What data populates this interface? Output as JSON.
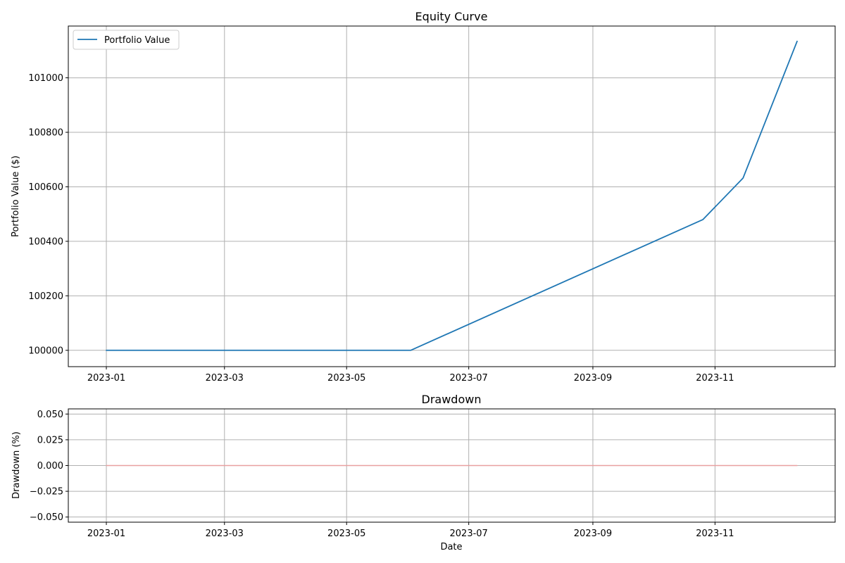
{
  "chart_data": [
    {
      "type": "line",
      "title": "Equity Curve",
      "xlabel": "",
      "ylabel": "Portfolio Value ($)",
      "x_ticks": [
        "2023-01",
        "2023-03",
        "2023-05",
        "2023-07",
        "2023-09",
        "2023-11"
      ],
      "y_ticks": [
        "100000",
        "100200",
        "100400",
        "100600",
        "100800",
        "101000"
      ],
      "xlim": [
        "2022-12-13",
        "2023-12-31"
      ],
      "ylim": [
        99940,
        101190
      ],
      "grid": true,
      "legend": {
        "placement": "upper-left",
        "entries": [
          "Portfolio Value"
        ]
      },
      "series": [
        {
          "name": "Portfolio Value",
          "color": "#1f77b4",
          "points": [
            {
              "x": "2023-01-01",
              "y": 100000
            },
            {
              "x": "2023-06-02",
              "y": 100000
            },
            {
              "x": "2023-10-26",
              "y": 100480
            },
            {
              "x": "2023-11-15",
              "y": 100632
            },
            {
              "x": "2023-12-12",
              "y": 101134
            }
          ]
        }
      ]
    },
    {
      "type": "line",
      "title": "Drawdown",
      "xlabel": "Date",
      "ylabel": "Drawdown (%)",
      "x_ticks": [
        "2023-01",
        "2023-03",
        "2023-05",
        "2023-07",
        "2023-09",
        "2023-11"
      ],
      "y_ticks": [
        "0.050",
        "0.025",
        "0.000",
        "−0.025",
        "−0.050"
      ],
      "xlim": [
        "2022-12-13",
        "2023-12-31"
      ],
      "ylim": [
        -0.055,
        0.055
      ],
      "grid": true,
      "series": [
        {
          "color": "#e8a0a0",
          "points": [
            {
              "x": "2023-01-01",
              "y": 0
            },
            {
              "x": "2023-12-12",
              "y": 0
            }
          ]
        }
      ]
    }
  ]
}
